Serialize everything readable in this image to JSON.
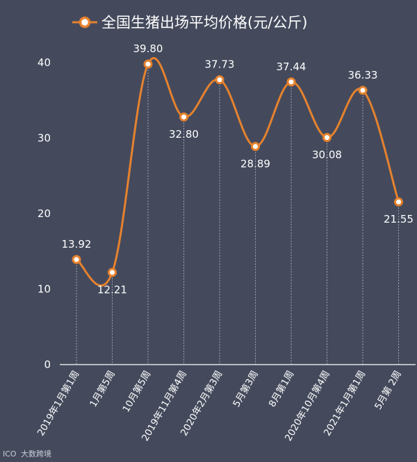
{
  "colors": {
    "background": "#444a5c",
    "series": "#e6822e",
    "text": "#ffffff",
    "grid": "#b8bcc8"
  },
  "watermark": {
    "logo": "ICO",
    "text": "大数跨境"
  },
  "chart_data": {
    "type": "line",
    "legend": {
      "position": "top-center",
      "marker": "circle"
    },
    "categories": [
      "2019年1月第1周",
      "1月第5周",
      "10月第5周",
      "2019年11月第4周",
      "2020年2月第3周",
      "5月第3周",
      "8月第1周",
      "2020年10月第4周",
      "2021年1月第1周",
      "5月第 2周"
    ],
    "series": [
      {
        "name": "全国生猪出场平均价格(元/公斤)",
        "values": [
          13.92,
          12.21,
          39.8,
          32.8,
          37.73,
          28.89,
          37.44,
          30.08,
          36.33,
          21.55
        ],
        "value_labels": [
          "13.92",
          "12.21",
          "39.80",
          "32.80",
          "37.73",
          "28.89",
          "37.44",
          "30.08",
          "36.33",
          "21.55"
        ],
        "label_side": [
          "above",
          "below",
          "above",
          "below",
          "above",
          "below",
          "above",
          "below",
          "above",
          "below"
        ]
      }
    ],
    "ylim": [
      0,
      40
    ],
    "yticks": [
      0,
      10,
      20,
      30,
      40
    ],
    "ytick_labels": [
      "0",
      "10",
      "20",
      "30",
      "40"
    ],
    "grid": "vertical-dashed",
    "smooth": true
  }
}
